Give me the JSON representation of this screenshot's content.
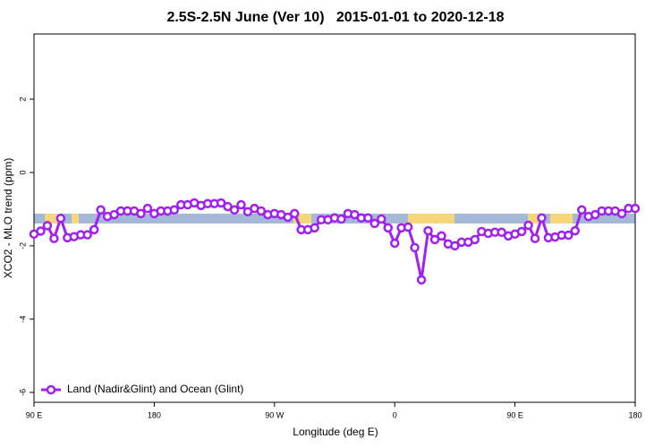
{
  "chart_data": {
    "type": "line",
    "title": "2.5S-2.5N June (Ver 10)   2015-01-01 to 2020-12-18",
    "xlabel": "Longitude (deg E)",
    "ylabel": "XCO2 - MLO trend (ppm)",
    "x": [
      90,
      95,
      100,
      105,
      110,
      115,
      120,
      125,
      130,
      135,
      140,
      145,
      150,
      155,
      160,
      165,
      170,
      175,
      180,
      185,
      190,
      195,
      200,
      205,
      210,
      215,
      220,
      225,
      230,
      235,
      240,
      245,
      250,
      255,
      260,
      265,
      270,
      275,
      280,
      285,
      290,
      295,
      300,
      305,
      310,
      315,
      320,
      325,
      330,
      335,
      340,
      345,
      350,
      355,
      360,
      365,
      370,
      375,
      380,
      385,
      390,
      395,
      400,
      405,
      410,
      415,
      420,
      425,
      430,
      435,
      440,
      445,
      450,
      455,
      460,
      465,
      470,
      475,
      480,
      485,
      490,
      495,
      500,
      505,
      510,
      515,
      520,
      525,
      530,
      535,
      540
    ],
    "series": [
      {
        "name": "Land (Nadir&Glint) and Ocean (Glint)",
        "color": "#a020f0",
        "values": [
          -1.68,
          -1.6,
          -1.45,
          -1.8,
          -1.25,
          -1.78,
          -1.75,
          -1.7,
          -1.7,
          -1.56,
          -1.02,
          -1.2,
          -1.15,
          -1.05,
          -1.05,
          -1.05,
          -1.12,
          -0.98,
          -1.12,
          -1.05,
          -1.05,
          -1.02,
          -0.88,
          -0.88,
          -0.83,
          -0.9,
          -0.85,
          -0.85,
          -0.83,
          -0.93,
          -1.02,
          -0.88,
          -1.07,
          -0.98,
          -1.05,
          -1.15,
          -1.12,
          -1.15,
          -1.22,
          -1.12,
          -1.56,
          -1.56,
          -1.51,
          -1.29,
          -1.29,
          -1.24,
          -1.27,
          -1.12,
          -1.15,
          -1.24,
          -1.24,
          -1.39,
          -1.27,
          -1.51,
          -1.93,
          -1.51,
          -1.49,
          -2.05,
          -2.93,
          -1.59,
          -1.83,
          -1.73,
          -1.95,
          -2.0,
          -1.9,
          -1.9,
          -1.83,
          -1.61,
          -1.66,
          -1.63,
          -1.63,
          -1.73,
          -1.68,
          -1.61,
          -1.44,
          -1.8,
          -1.24,
          -1.78,
          -1.76,
          -1.71,
          -1.71,
          -1.59,
          -1.02,
          -1.2,
          -1.15,
          -1.05,
          -1.05,
          -1.05,
          -1.12,
          -0.98,
          -0.98
        ]
      }
    ],
    "xlim": [
      90,
      540
    ],
    "xticks": [
      {
        "value": 90,
        "label": "90 E"
      },
      {
        "value": 180,
        "label": "180"
      },
      {
        "value": 270,
        "label": "90 W"
      },
      {
        "value": 360,
        "label": "0"
      },
      {
        "value": 450,
        "label": "90 E"
      },
      {
        "value": 540,
        "label": "180"
      }
    ],
    "ylim": [
      -6.27,
      3.78
    ],
    "yticks": [
      -6,
      -4,
      -2,
      0,
      2
    ],
    "legend": "bottom-left"
  }
}
